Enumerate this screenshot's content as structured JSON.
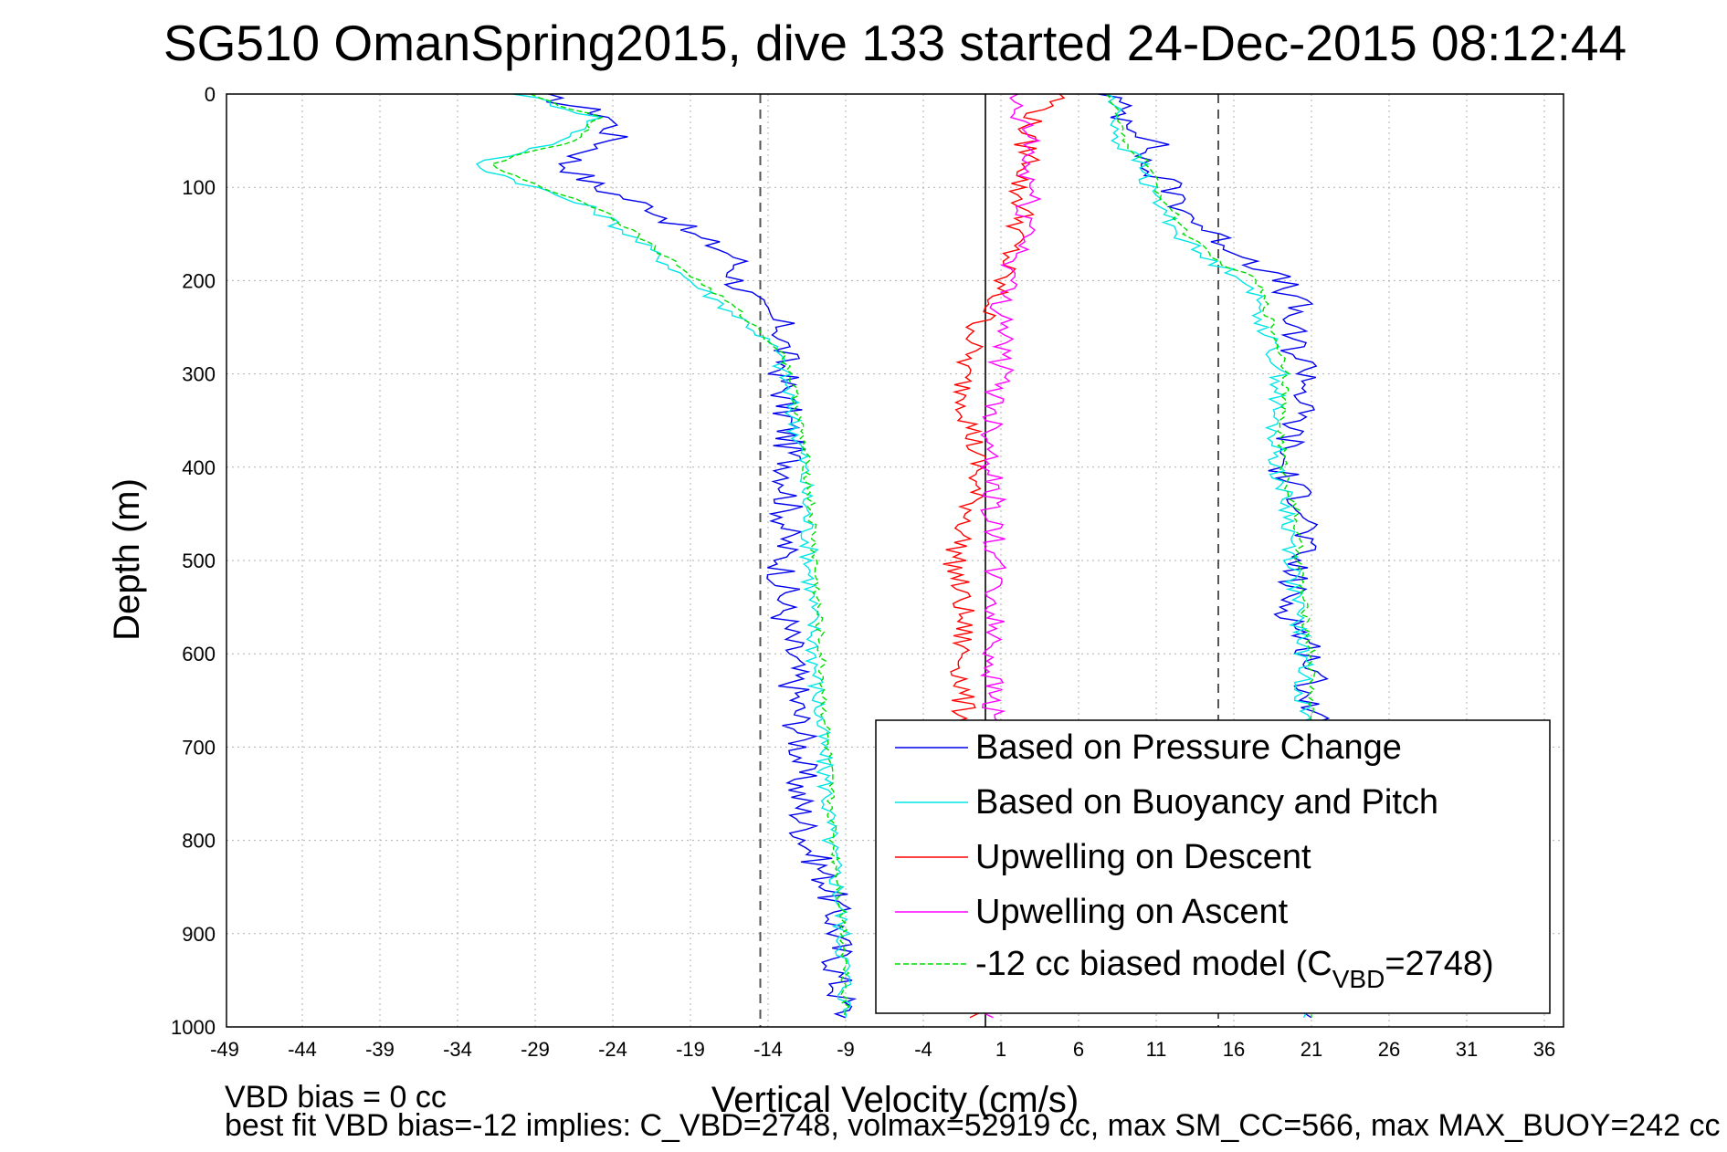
{
  "chart_data": {
    "type": "line",
    "title": "SG510 OmanSpring2015, dive 133 started 24-Dec-2015 08:12:44",
    "xlabel": "Vertical Velocity (cm/s)",
    "ylabel": "Depth (m)",
    "xlim": [
      -49,
      37
    ],
    "ylim": [
      0,
      1000
    ],
    "y_reversed": true,
    "grid": true,
    "legend_position": "bottom-right",
    "x_ticks": [
      -49,
      -44,
      -39,
      -34,
      -29,
      -24,
      -19,
      -14,
      -9,
      -4,
      1,
      6,
      11,
      16,
      21,
      26,
      31,
      36
    ],
    "y_ticks": [
      0,
      100,
      200,
      300,
      400,
      500,
      600,
      700,
      800,
      900,
      1000
    ],
    "reference_lines": {
      "dashed_x": [
        -14.5,
        15
      ],
      "solid_x": [
        0
      ]
    },
    "depth": [
      0,
      25,
      50,
      75,
      100,
      125,
      150,
      175,
      200,
      225,
      250,
      275,
      300,
      350,
      400,
      450,
      500,
      550,
      600,
      650,
      700,
      750,
      800,
      850,
      900,
      950,
      990
    ],
    "series": [
      {
        "name": "Based on Pressure Change",
        "color": "#0000ee",
        "dash": "solid",
        "descent": [
          -29,
          -24,
          -24,
          -27,
          -25,
          -21,
          -19,
          -16,
          -16,
          -15,
          -13,
          -13,
          -13,
          -12.8,
          -12.5,
          -12.8,
          -13,
          -13,
          -12.5,
          -12.2,
          -11.8,
          -12,
          -11.5,
          -10,
          -9.5,
          -9.5,
          -9
        ],
        "ascent": [
          8,
          9,
          11,
          10,
          12,
          13,
          14.5,
          17,
          19,
          20,
          19.5,
          20,
          21,
          20,
          19,
          21,
          20,
          19.5,
          21,
          21,
          21,
          21,
          21,
          21,
          21,
          21,
          21
        ]
      },
      {
        "name": "Based on Buoyancy and Pitch",
        "color": "#00e5e5",
        "dash": "solid",
        "descent": [
          -30,
          -25,
          -27,
          -33,
          -29,
          -25,
          -23,
          -21,
          -19,
          -17,
          -15,
          -13.5,
          -13,
          -12.3,
          -11.7,
          -11.5,
          -11.3,
          -11.2,
          -11,
          -10.8,
          -10.5,
          -10.2,
          -10,
          -9.5,
          -9.2,
          -9,
          -9
        ],
        "ascent": [
          8,
          8.5,
          8.5,
          10,
          10.5,
          11.5,
          12.5,
          14,
          17,
          17.5,
          18,
          18.5,
          19,
          18.5,
          18.8,
          19.5,
          19.8,
          20,
          20.5,
          20.5,
          20.5,
          20.5,
          20.5,
          20.5,
          20.5,
          20.5,
          20.5
        ]
      },
      {
        "name": "Upwelling on Descent",
        "color": "#ff0000",
        "dash": "solid",
        "descent": [
          5,
          3,
          2.5,
          3,
          2,
          2.5,
          2,
          1.5,
          1,
          0.5,
          -0.5,
          -1,
          -1.5,
          -1,
          -0.5,
          -1,
          -2,
          -1.5,
          -1.5,
          -1.5,
          -1,
          -1,
          -1,
          -1,
          -1,
          -1,
          -1
        ]
      },
      {
        "name": "Upwelling on Ascent",
        "color": "#ff00ff",
        "dash": "solid",
        "ascent": [
          1.5,
          2,
          3,
          2.5,
          3,
          2.5,
          3,
          2,
          1.5,
          1,
          1.5,
          1,
          1,
          0.5,
          0.5,
          0.5,
          0.5,
          0.5,
          0.5,
          0.5,
          0.5,
          0.5,
          0.5,
          0.5,
          0.5,
          0.5,
          0.5
        ]
      },
      {
        "name": "-12 cc biased model (C_VBD=2748)",
        "color": "#00dd00",
        "dash": "dashed",
        "descent": [
          -29.5,
          -25,
          -26.5,
          -32,
          -28.5,
          -24.5,
          -22.5,
          -20.5,
          -18.5,
          -16.5,
          -14.8,
          -13.2,
          -12.5,
          -12,
          -11.5,
          -11.2,
          -11,
          -10.8,
          -10.6,
          -10.4,
          -10.2,
          -10,
          -9.8,
          -9.4,
          -9.1,
          -9,
          -9
        ],
        "ascent": [
          8,
          8.5,
          8.8,
          10.5,
          11,
          12,
          13,
          14.5,
          17.5,
          18,
          18.5,
          19,
          19.5,
          19,
          19.2,
          20,
          20.2,
          20.5,
          21,
          21,
          21,
          21,
          21,
          21,
          21,
          21,
          21
        ]
      }
    ],
    "legend": [
      "Based on Pressure Change",
      "Based on Buoyancy and Pitch",
      "Upwelling on Descent",
      "Upwelling on Ascent"
    ],
    "legend_model_main": "-12 cc biased model (C",
    "legend_model_sub": "VBD",
    "legend_model_tail": "=2748)",
    "annotations": {
      "vbd_bias": "VBD bias = 0 cc",
      "best_fit": "best fit VBD bias=-12 implies: C_VBD=2748, volmax=52919 cc, max SM_CC=566, max MAX_BUOY=242 cc"
    }
  }
}
